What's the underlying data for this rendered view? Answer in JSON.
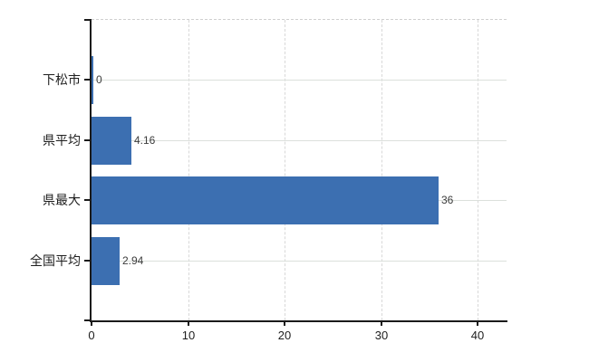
{
  "chart_data": {
    "type": "bar",
    "orientation": "horizontal",
    "title": "",
    "xlabel": "",
    "ylabel": "",
    "categories": [
      "下松市",
      "県平均",
      "県最大",
      "全国平均"
    ],
    "values": [
      0,
      4.16,
      36,
      2.94
    ],
    "value_labels": [
      "0",
      "4.16",
      "36",
      "2.94"
    ],
    "x_ticks": [
      0,
      10,
      20,
      30,
      40
    ],
    "x_tick_labels": [
      "0",
      "10",
      "20",
      "30",
      "40"
    ],
    "xlim": [
      0,
      43
    ],
    "grid": true,
    "legend": false,
    "colors": {
      "bar": "#3c6fb1",
      "grid_horizontal": "#dce0dc",
      "grid_vertical": "#d8d8d8",
      "top_border": "#cfcfcf",
      "axis": "#1a1a1a",
      "category_label": "#1e1e1e",
      "value_label": "#3c3c3c",
      "tick_label": "#1e1e1e",
      "background": "#ffffff"
    }
  }
}
